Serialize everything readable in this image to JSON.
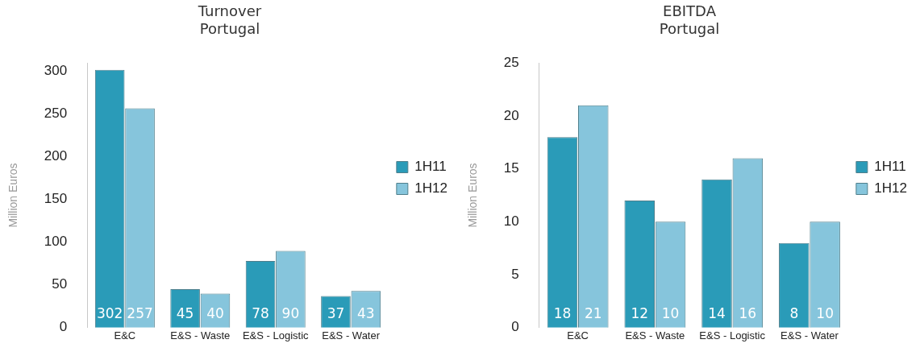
{
  "chart_data": [
    {
      "type": "bar",
      "title": "Turnover",
      "subtitle": "Portugal",
      "ylabel": "Million Euros",
      "categories": [
        "E&C",
        "E&S - Waste",
        "E&S - Logistic",
        "E&S - Water"
      ],
      "series": [
        {
          "name": "1H11",
          "color": "#2a9bb8",
          "values": [
            302,
            45,
            78,
            37
          ]
        },
        {
          "name": "1H12",
          "color": "#86c5dc",
          "values": [
            257,
            40,
            90,
            43
          ]
        }
      ],
      "ylim": [
        0,
        310
      ],
      "yticks": [
        0,
        50,
        100,
        150,
        200,
        250,
        300
      ],
      "grid": false,
      "legend": "right",
      "data_labels": true
    },
    {
      "type": "bar",
      "title": "EBITDA",
      "subtitle": "Portugal",
      "ylabel": "Million Euros",
      "categories": [
        "E&C",
        "E&S - Waste",
        "E&S - Logistic",
        "E&S - Water"
      ],
      "series": [
        {
          "name": "1H11",
          "color": "#2a9bb8",
          "values": [
            18,
            12,
            14,
            8
          ]
        },
        {
          "name": "1H12",
          "color": "#86c5dc",
          "values": [
            21,
            10,
            16,
            10
          ]
        }
      ],
      "ylim": [
        0,
        25
      ],
      "yticks": [
        0,
        5,
        10,
        15,
        20,
        25
      ],
      "grid": false,
      "legend": "right",
      "data_labels": true
    }
  ]
}
